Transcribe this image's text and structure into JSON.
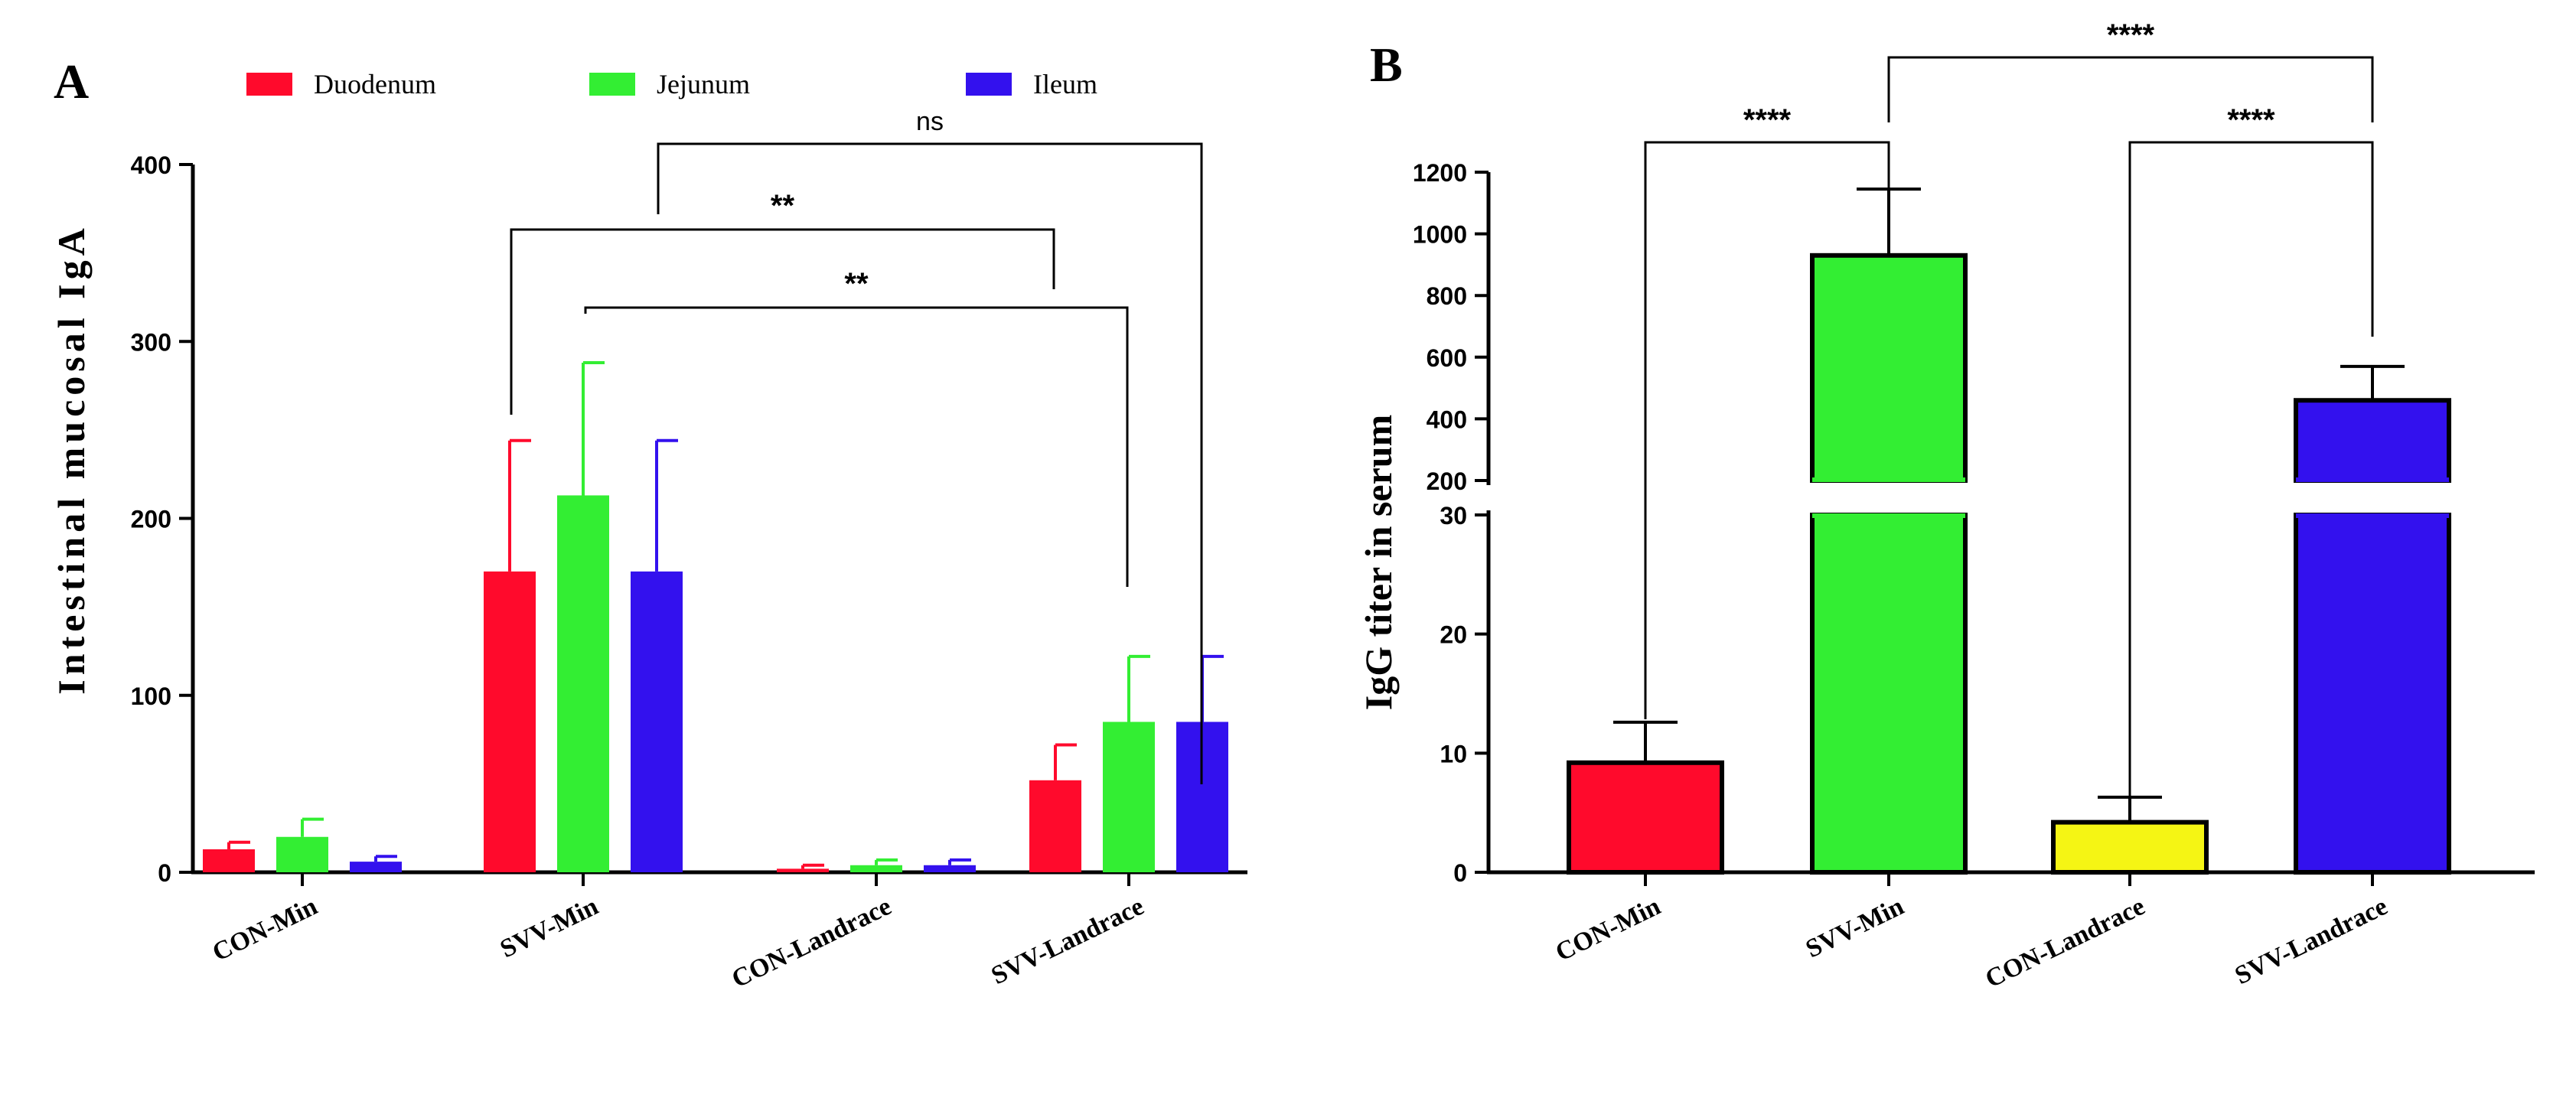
{
  "chart_data": [
    {
      "panel": "A",
      "type": "bar",
      "ylabel": "Intestinal mucosal IgA",
      "ylim": [
        0,
        400
      ],
      "yticks": [
        "0",
        "100",
        "200",
        "300",
        "400"
      ],
      "categories": [
        "CON-Min",
        "SVV-Min",
        "CON-Landrace",
        "SVV-Landrace"
      ],
      "series": [
        {
          "name": "Duodenum",
          "color": "#ff0a2c",
          "values": [
            13,
            170,
            2,
            52
          ],
          "errors": [
            4,
            74,
            2,
            20
          ]
        },
        {
          "name": "Jejunum",
          "color": "#33ee33",
          "values": [
            20,
            213,
            4,
            85
          ],
          "errors": [
            10,
            75,
            3,
            37
          ]
        },
        {
          "name": "Ileum",
          "color": "#3311ee",
          "values": [
            6,
            170,
            4,
            85
          ],
          "errors": [
            3,
            74,
            3,
            37
          ]
        }
      ],
      "annotations": [
        {
          "label": "ns"
        },
        {
          "label": "**"
        },
        {
          "label": "**"
        }
      ]
    },
    {
      "panel": "B",
      "type": "bar",
      "ylabel": "IgG  titer in serum",
      "axis_break": {
        "lower": [
          0,
          30
        ],
        "upper": [
          200,
          1200
        ]
      },
      "yticks_lower": [
        "0",
        "10",
        "20",
        "30"
      ],
      "yticks_upper": [
        "200",
        "400",
        "600",
        "800",
        "1000",
        "1200"
      ],
      "categories": [
        "CON-Min",
        "SVV-Min",
        "CON-Landrace",
        "SVV-Landrace"
      ],
      "colors": [
        "#ff0a2c",
        "#33ee33",
        "#f5f514",
        "#3311ee"
      ],
      "values": [
        9.2,
        930,
        4.2,
        460
      ],
      "errors": [
        3.4,
        215,
        2.1,
        110
      ],
      "annotations": [
        {
          "label": "****"
        },
        {
          "label": "****"
        },
        {
          "label": "****"
        }
      ]
    }
  ]
}
